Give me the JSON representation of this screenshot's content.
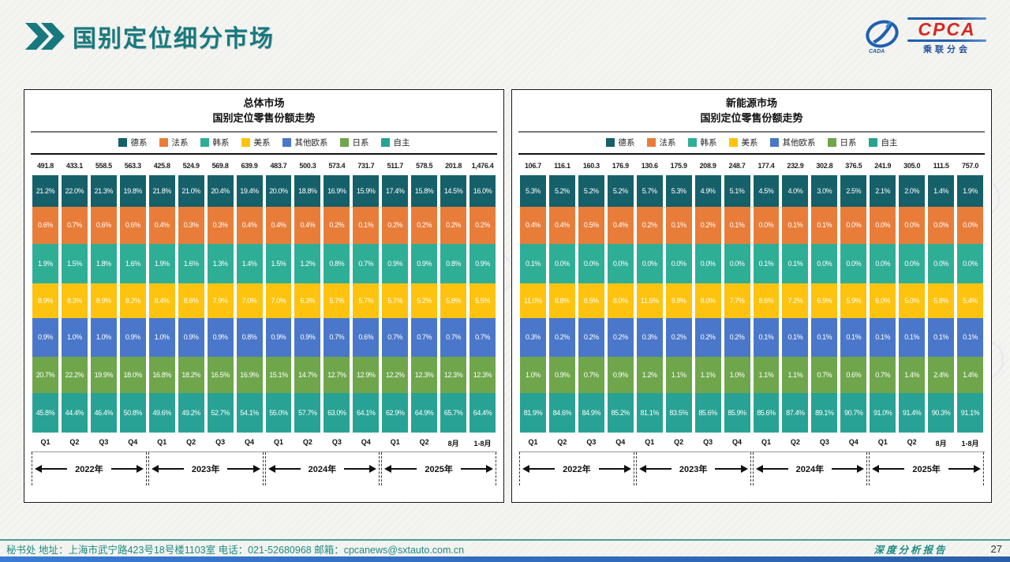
{
  "header": {
    "title": "国别定位细分市场",
    "logo_text": "CPCA",
    "logo_subtext": "乘联分会",
    "logo_mark": "CADA"
  },
  "footer": {
    "left": "秘书处   地址：上海市武宁路423号18号楼1103室  电话：021-52680968   邮箱：cpcanews@sxtauto.com.cn",
    "report_label": "深度分析报告",
    "page": "27"
  },
  "colors": {
    "german": "#16606a",
    "french": "#e87d3a",
    "korean": "#2fae96",
    "american": "#fdc30f",
    "other_european": "#4a77c9",
    "japanese": "#6fa64c",
    "domestic": "#28a294",
    "accent_teal": "#17797e"
  },
  "chart_data": [
    {
      "type": "bar",
      "subtype": "stacked-percent-column",
      "title_line1": "总体市场",
      "title_line2": "国别定位零售份额走势",
      "totals": [
        "491.8",
        "433.1",
        "558.5",
        "563.3",
        "425.8",
        "524.9",
        "569.8",
        "639.9",
        "483.7",
        "500.3",
        "573.4",
        "731.7",
        "511.7",
        "578.5",
        "201.8",
        "1,476.4"
      ],
      "categories": [
        "Q1",
        "Q2",
        "Q3",
        "Q4",
        "Q1",
        "Q2",
        "Q3",
        "Q4",
        "Q1",
        "Q2",
        "Q3",
        "Q4",
        "Q1",
        "Q2",
        "8月",
        "1-8月"
      ],
      "year_groups": [
        {
          "label": "2022年",
          "span": 4
        },
        {
          "label": "2023年",
          "span": 4
        },
        {
          "label": "2024年",
          "span": 4
        },
        {
          "label": "2025年",
          "span": 4
        }
      ],
      "series": [
        {
          "name": "德系",
          "color": "#16606a",
          "values": [
            21.2,
            22.0,
            21.3,
            19.8,
            21.8,
            21.0,
            20.4,
            19.4,
            20.0,
            18.8,
            16.9,
            15.9,
            17.4,
            15.8,
            14.5,
            16.0
          ]
        },
        {
          "name": "法系",
          "color": "#e87d3a",
          "values": [
            0.6,
            0.7,
            0.6,
            0.6,
            0.4,
            0.3,
            0.3,
            0.4,
            0.4,
            0.4,
            0.2,
            0.1,
            0.2,
            0.2,
            0.2,
            0.2
          ]
        },
        {
          "name": "韩系",
          "color": "#2fae96",
          "values": [
            1.9,
            1.5,
            1.8,
            1.6,
            1.9,
            1.6,
            1.3,
            1.4,
            1.5,
            1.2,
            0.8,
            0.7,
            0.9,
            0.9,
            0.8,
            0.9
          ]
        },
        {
          "name": "美系",
          "color": "#fdc30f",
          "values": [
            8.9,
            8.3,
            8.9,
            8.2,
            8.4,
            8.6,
            7.9,
            7.0,
            7.0,
            6.3,
            5.7,
            5.7,
            5.7,
            5.2,
            5.8,
            5.5
          ]
        },
        {
          "name": "其他欧系",
          "color": "#4a77c9",
          "values": [
            0.9,
            1.0,
            1.0,
            0.9,
            1.0,
            0.9,
            0.9,
            0.8,
            0.9,
            0.9,
            0.7,
            0.6,
            0.7,
            0.7,
            0.7,
            0.7
          ]
        },
        {
          "name": "日系",
          "color": "#6fa64c",
          "values": [
            20.7,
            22.2,
            19.9,
            18.0,
            16.8,
            18.2,
            16.5,
            16.9,
            15.1,
            14.7,
            12.7,
            12.9,
            12.2,
            12.3,
            12.3,
            12.3
          ]
        },
        {
          "name": "自主",
          "color": "#28a294",
          "values": [
            45.8,
            44.4,
            46.4,
            50.8,
            49.6,
            49.2,
            52.7,
            54.1,
            55.0,
            57.7,
            63.0,
            64.1,
            62.9,
            64.9,
            65.7,
            64.4
          ]
        }
      ]
    },
    {
      "type": "bar",
      "subtype": "stacked-percent-column",
      "title_line1": "新能源市场",
      "title_line2": "国别定位零售份额走势",
      "totals": [
        "106.7",
        "116.1",
        "160.3",
        "176.9",
        "130.6",
        "175.9",
        "208.9",
        "248.7",
        "177.4",
        "232.9",
        "302.8",
        "376.5",
        "241.9",
        "305.0",
        "111.5",
        "757.0"
      ],
      "categories": [
        "Q1",
        "Q2",
        "Q3",
        "Q4",
        "Q1",
        "Q2",
        "Q3",
        "Q4",
        "Q1",
        "Q2",
        "Q3",
        "Q4",
        "Q1",
        "Q2",
        "8月",
        "1-8月"
      ],
      "year_groups": [
        {
          "label": "2022年",
          "span": 4
        },
        {
          "label": "2023年",
          "span": 4
        },
        {
          "label": "2024年",
          "span": 4
        },
        {
          "label": "2025年",
          "span": 4
        }
      ],
      "series": [
        {
          "name": "德系",
          "color": "#16606a",
          "values": [
            5.3,
            5.2,
            5.2,
            5.2,
            5.7,
            5.3,
            4.9,
            5.1,
            4.5,
            4.0,
            3.0,
            2.5,
            2.1,
            2.0,
            1.4,
            1.9
          ]
        },
        {
          "name": "法系",
          "color": "#e87d3a",
          "values": [
            0.4,
            0.4,
            0.5,
            0.4,
            0.2,
            0.1,
            0.2,
            0.1,
            0.0,
            0.1,
            0.1,
            0.0,
            0.0,
            0.0,
            0.0,
            0.0
          ]
        },
        {
          "name": "韩系",
          "color": "#2fae96",
          "values": [
            0.1,
            0.0,
            0.0,
            0.0,
            0.0,
            0.0,
            0.0,
            0.0,
            0.1,
            0.1,
            0.0,
            0.0,
            0.0,
            0.0,
            0.0,
            0.0
          ]
        },
        {
          "name": "美系",
          "color": "#fdc30f",
          "values": [
            11.0,
            8.8,
            8.5,
            8.0,
            11.5,
            9.8,
            8.0,
            7.7,
            8.6,
            7.2,
            6.9,
            5.9,
            6.0,
            5.0,
            5.8,
            5.4
          ]
        },
        {
          "name": "其他欧系",
          "color": "#4a77c9",
          "values": [
            0.3,
            0.2,
            0.2,
            0.2,
            0.3,
            0.2,
            0.2,
            0.2,
            0.1,
            0.1,
            0.1,
            0.1,
            0.1,
            0.1,
            0.1,
            0.1
          ]
        },
        {
          "name": "日系",
          "color": "#6fa64c",
          "values": [
            1.0,
            0.9,
            0.7,
            0.9,
            1.2,
            1.1,
            1.1,
            1.0,
            1.1,
            1.1,
            0.7,
            0.6,
            0.7,
            1.4,
            2.4,
            1.4
          ]
        },
        {
          "name": "自主",
          "color": "#28a294",
          "values": [
            81.9,
            84.6,
            84.9,
            85.2,
            81.1,
            83.5,
            85.6,
            85.9,
            85.6,
            87.4,
            89.1,
            90.7,
            91.0,
            91.4,
            90.3,
            91.1
          ]
        }
      ]
    }
  ]
}
